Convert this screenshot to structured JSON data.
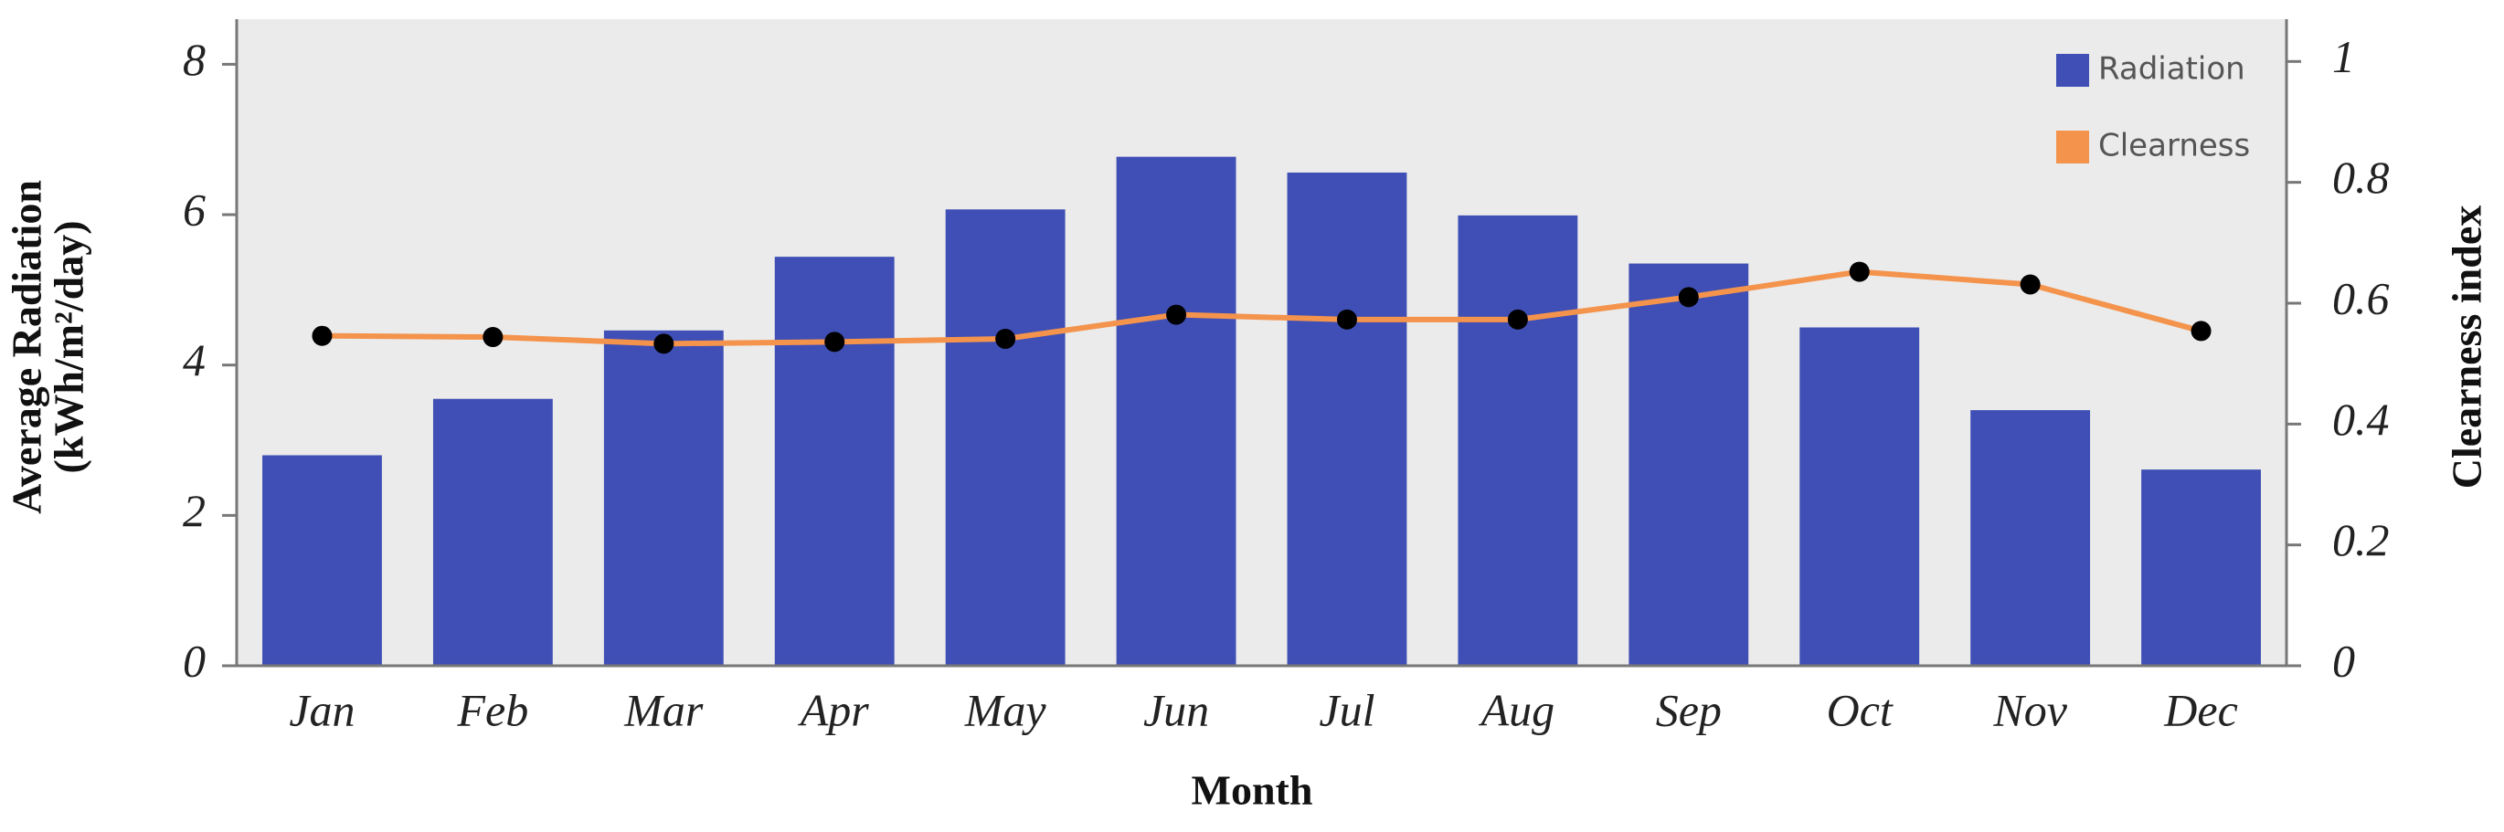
{
  "chart_data": {
    "type": "bar_line",
    "x_label": "Month",
    "y_label": [
      "Average Radiation",
      "(kWh/m²/day)"
    ],
    "y2_label": "Clearness index",
    "categories": [
      "Jan",
      "Feb",
      "Mar",
      "Apr",
      "May",
      "Jun",
      "Jul",
      "Aug",
      "Sep",
      "Oct",
      "Nov",
      "Dec"
    ],
    "series": [
      {
        "name": "Radiation",
        "type": "bar",
        "color": "#3f4fb5",
        "values": [
          2.8,
          3.55,
          4.46,
          5.44,
          6.07,
          6.77,
          6.56,
          5.99,
          5.35,
          4.5,
          3.4,
          2.61
        ]
      },
      {
        "name": "Clearness",
        "type": "line",
        "axis": "y2",
        "color": "#f4934c",
        "marker_color": "#000000",
        "values": [
          0.546,
          0.544,
          0.533,
          0.536,
          0.541,
          0.581,
          0.573,
          0.573,
          0.61,
          0.652,
          0.631,
          0.554
        ]
      }
    ],
    "ylim": [
      0,
      8.6
    ],
    "yticks": [
      0,
      2,
      4,
      6,
      8
    ],
    "y2lim": [
      0,
      1.07
    ],
    "y2ticks": [
      0,
      0.2,
      0.4,
      0.6,
      0.8,
      1
    ],
    "legend": "upper right",
    "background": "#ebebeb"
  }
}
